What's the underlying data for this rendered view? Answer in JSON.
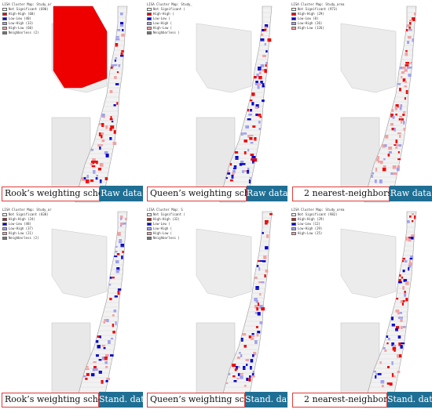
{
  "colors": {
    "not_significant": "#f2f2f2",
    "high_high": "#ee0000",
    "low_low": "#0000cc",
    "low_high": "#9f9ff0",
    "high_low": "#f2a0a0",
    "neighborless": "#777777",
    "caption_border": "#e03a3a",
    "tag_background": "#1f6f94"
  },
  "panels": [
    {
      "legend": {
        "title": "LISA Cluster Map: Study_ar",
        "items": [
          {
            "label": "Not Significant (690)",
            "color": "#f2f2f2"
          },
          {
            "label": "High-High (60)",
            "color": "#ee0000"
          },
          {
            "label": "Low-Low (40)",
            "color": "#0000cc"
          },
          {
            "label": "Low-High (33)",
            "color": "#9f9ff0"
          },
          {
            "label": "High-Low (60)",
            "color": "#f2a0a0"
          },
          {
            "label": "Neighborless (2)",
            "color": "#777777"
          }
        ]
      },
      "caption": "Rook’s weighting scheme",
      "tag": "Raw data"
    },
    {
      "legend": {
        "title": "LISA Cluster Map: Study_",
        "items": [
          {
            "label": "Not Significant (",
            "color": "#f2f2f2"
          },
          {
            "label": "High-High (",
            "color": "#ee0000"
          },
          {
            "label": "Low-Low (",
            "color": "#0000cc"
          },
          {
            "label": "Low-High (",
            "color": "#9f9ff0"
          },
          {
            "label": "High-Low (",
            "color": "#f2a0a0"
          },
          {
            "label": "Neighborless (",
            "color": "#777777"
          }
        ]
      },
      "caption": "Queen’s weighting scheme",
      "tag": "Raw data"
    },
    {
      "legend": {
        "title": "LISA Cluster Map: Study_area",
        "items": [
          {
            "label": "Not Significant (973)",
            "color": "#f2f2f2"
          },
          {
            "label": "High-High (29)",
            "color": "#ee0000"
          },
          {
            "label": "Low-Low (0)",
            "color": "#0000cc"
          },
          {
            "label": "Low-High (26)",
            "color": "#9f9ff0"
          },
          {
            "label": "High-Low (126)",
            "color": "#f2a0a0"
          }
        ]
      },
      "caption": "2 nearest-neighbors",
      "tag": "Raw data"
    },
    {
      "legend": {
        "title": "LISA Cluster Map: Study_ar",
        "items": [
          {
            "label": "Not Significant (838)",
            "color": "#f2f2f2"
          },
          {
            "label": "High-High (24)",
            "color": "#ee0000"
          },
          {
            "label": "Low-Low (48)",
            "color": "#0000cc"
          },
          {
            "label": "Low-High (37)",
            "color": "#9f9ff0"
          },
          {
            "label": "High-Low (21)",
            "color": "#f2a0a0"
          },
          {
            "label": "Neighborless (2)",
            "color": "#777777"
          }
        ]
      },
      "caption": "Rook’s weighting scheme",
      "tag": "Stand. data"
    },
    {
      "legend": {
        "title": "LISA Cluster Map: S",
        "items": [
          {
            "label": "Not Significant (",
            "color": "#f2f2f2"
          },
          {
            "label": "High-High (32)",
            "color": "#ee0000"
          },
          {
            "label": "Low-Low (",
            "color": "#0000cc"
          },
          {
            "label": "Low-High (",
            "color": "#9f9ff0"
          },
          {
            "label": "High-Low (",
            "color": "#f2a0a0"
          },
          {
            "label": "Neighborless (",
            "color": "#777777"
          }
        ]
      },
      "caption": "Queen’s weighting scheme",
      "tag": "Stand. data"
    },
    {
      "legend": {
        "title": "LISA Cluster Map: Study_area",
        "items": [
          {
            "label": "Not Significant (982)",
            "color": "#f2f2f2"
          },
          {
            "label": "High-High (29)",
            "color": "#ee0000"
          },
          {
            "label": "Low-Low (12)",
            "color": "#0000cc"
          },
          {
            "label": "Low-High (29)",
            "color": "#9f9ff0"
          },
          {
            "label": "High-Low (25)",
            "color": "#f2a0a0"
          }
        ]
      },
      "caption": "2 nearest-neighbors",
      "tag": "Stand. data"
    }
  ]
}
